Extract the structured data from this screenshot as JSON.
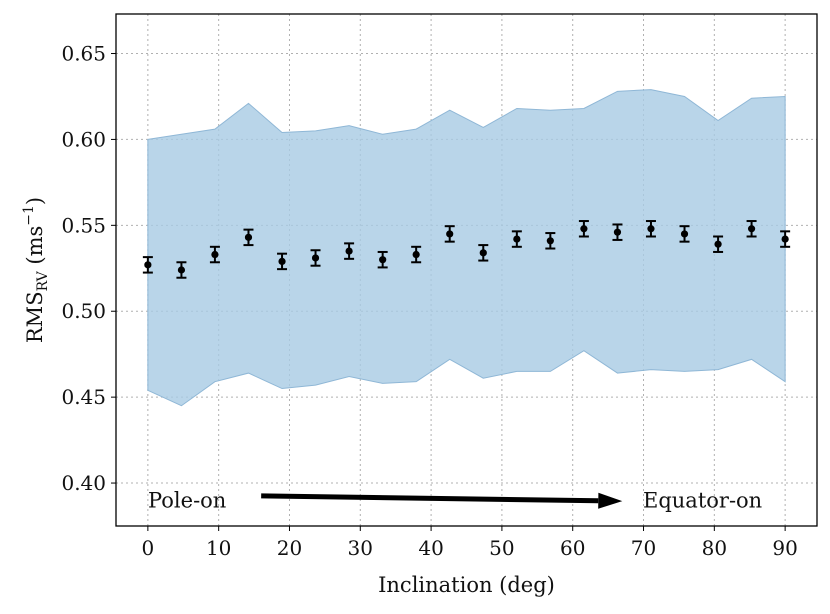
{
  "chart_data": {
    "type": "errorbar",
    "xlabel": "Inclination (deg)",
    "ylabel": {
      "main": "RMS",
      "sub": "RV",
      "units_open": " (ms",
      "units_sup": "−1",
      "units_close": ")"
    },
    "xlim": [
      -4.5,
      94.5
    ],
    "ylim": [
      0.375,
      0.673
    ],
    "xticks": [
      0,
      10,
      20,
      30,
      40,
      50,
      60,
      70,
      80,
      90
    ],
    "xtick_labels": [
      "0",
      "10",
      "20",
      "30",
      "40",
      "50",
      "60",
      "70",
      "80",
      "90"
    ],
    "yticks": [
      0.4,
      0.45,
      0.5,
      0.55,
      0.6,
      0.65
    ],
    "ytick_labels": [
      "0.40",
      "0.45",
      "0.50",
      "0.55",
      "0.60",
      "0.65"
    ],
    "grid": true,
    "band": {
      "color": "#a8cbe3",
      "edge_color": "#8fb7d6",
      "x": [
        0,
        4.74,
        9.47,
        14.21,
        18.95,
        23.68,
        28.42,
        33.16,
        37.89,
        42.63,
        47.37,
        52.11,
        56.84,
        61.58,
        66.32,
        71.05,
        75.79,
        80.53,
        85.26,
        90
      ],
      "upper": [
        0.6,
        0.603,
        0.606,
        0.621,
        0.604,
        0.605,
        0.608,
        0.603,
        0.606,
        0.617,
        0.607,
        0.618,
        0.617,
        0.618,
        0.628,
        0.629,
        0.625,
        0.611,
        0.624,
        0.625
      ],
      "lower": [
        0.454,
        0.445,
        0.459,
        0.464,
        0.455,
        0.457,
        0.462,
        0.458,
        0.459,
        0.472,
        0.461,
        0.465,
        0.465,
        0.477,
        0.464,
        0.466,
        0.465,
        0.466,
        0.472,
        0.459
      ]
    },
    "series": [
      {
        "name": "RMS_RV",
        "color": "#000000",
        "x": [
          0,
          4.74,
          9.47,
          14.21,
          18.95,
          23.68,
          28.42,
          33.16,
          37.89,
          42.63,
          47.37,
          52.11,
          56.84,
          61.58,
          66.32,
          71.05,
          75.79,
          80.53,
          85.26,
          90
        ],
        "y": [
          0.527,
          0.524,
          0.533,
          0.543,
          0.529,
          0.531,
          0.535,
          0.53,
          0.533,
          0.545,
          0.534,
          0.542,
          0.541,
          0.548,
          0.546,
          0.548,
          0.545,
          0.539,
          0.548,
          0.542
        ],
        "yerr": [
          0.0045,
          0.0045,
          0.0045,
          0.0045,
          0.0045,
          0.0045,
          0.0045,
          0.0045,
          0.0045,
          0.0045,
          0.0045,
          0.0045,
          0.0045,
          0.0045,
          0.0045,
          0.0045,
          0.0045,
          0.0045,
          0.0045,
          0.0045
        ]
      }
    ],
    "annotations": {
      "left_text": "Pole-on",
      "right_text": "Equator-on",
      "arrow": {
        "x_start": 16.0,
        "x_end": 67.0,
        "y_start": 0.3925,
        "y_end": 0.3895
      }
    }
  }
}
